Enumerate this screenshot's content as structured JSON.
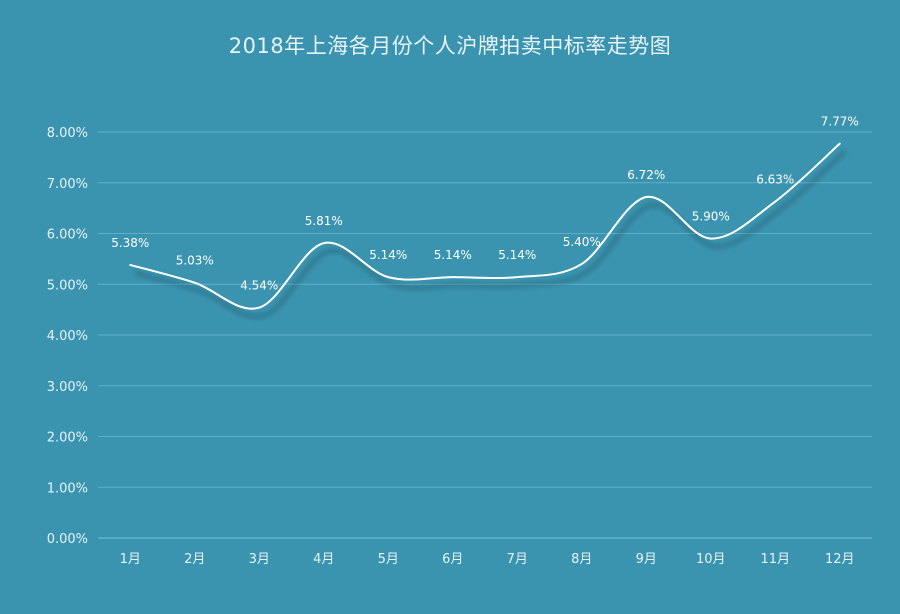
{
  "chart_data": {
    "type": "line",
    "title": "2018年上海各月份个人沪牌拍卖中标率走势图",
    "categories": [
      "1月",
      "2月",
      "3月",
      "4月",
      "5月",
      "6月",
      "7月",
      "8月",
      "9月",
      "10月",
      "11月",
      "12月"
    ],
    "series": [
      {
        "values": [
          5.38,
          5.03,
          4.54,
          5.81,
          5.14,
          5.14,
          5.14,
          5.4,
          6.72,
          5.9,
          6.63,
          7.77
        ],
        "labels": [
          "5.38%",
          "5.03%",
          "4.54%",
          "5.81%",
          "5.14%",
          "5.14%",
          "5.14%",
          "5.40%",
          "6.72%",
          "5.90%",
          "6.63%",
          "7.77%"
        ],
        "color": "#ffffff"
      }
    ],
    "y_ticks": [
      "0.00%",
      "1.00%",
      "2.00%",
      "3.00%",
      "4.00%",
      "5.00%",
      "6.00%",
      "7.00%",
      "8.00%"
    ],
    "ylim": [
      0,
      8
    ],
    "y_unit": "%",
    "grid": true,
    "smooth": true,
    "legend": "none",
    "colors": {
      "background": "#3a94b0",
      "line": "#ffffff",
      "grid": "#5fb0c7",
      "shadow": "#2b6f86"
    }
  }
}
